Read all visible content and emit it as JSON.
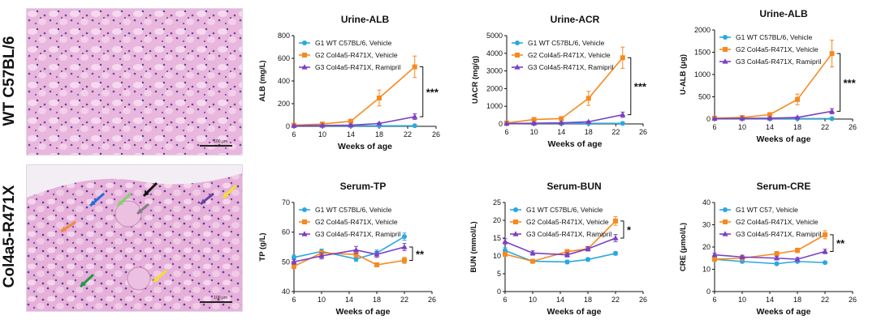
{
  "row_labels": [
    "WT C57BL/6",
    "Col4a5-R471X"
  ],
  "micrographs": [
    {
      "scale_label": "100 μm",
      "arrows": []
    },
    {
      "scale_label": "100 μm",
      "arrows": [
        "#1e6fd9",
        "#f08a3c",
        "#7fd36b",
        "#111111",
        "#808080",
        "#6a3fa0",
        "#f2e02a",
        "#f2e02a",
        "#1f9a4a"
      ]
    }
  ],
  "colors": {
    "G1": "#2aa8e0",
    "G2": "#f58a1f",
    "G3": "#7b3fc4"
  },
  "chart_data": [
    {
      "type": "line",
      "title": "Urine-ALB",
      "xlabel": "Weeks of age",
      "ylabel": "ALB (mg/L)",
      "xlim": [
        6,
        26
      ],
      "xticks": [
        6,
        10,
        14,
        18,
        22,
        26
      ],
      "ylim": [
        0,
        800
      ],
      "yticks": [
        0,
        200,
        400,
        600,
        800
      ],
      "significance": "***",
      "sig_between": [
        "G2",
        "G3"
      ],
      "series": [
        {
          "key": "G1",
          "name": "G1 WT C57BL/6, Vehicle",
          "marker": "circle",
          "x": [
            6,
            10,
            14,
            18,
            23
          ],
          "y": [
            5,
            5,
            5,
            5,
            5
          ],
          "err": [
            2,
            2,
            2,
            2,
            2
          ]
        },
        {
          "key": "G2",
          "name": "G2 Col4a5-R471X, Vehicle",
          "marker": "square",
          "x": [
            6,
            10,
            14,
            18,
            23
          ],
          "y": [
            10,
            20,
            45,
            250,
            525
          ],
          "err": [
            5,
            8,
            12,
            70,
            95
          ]
        },
        {
          "key": "G3",
          "name": "G3 Col4a5-R471X, Ramipril",
          "marker": "triangle",
          "x": [
            6,
            10,
            14,
            18,
            23
          ],
          "y": [
            5,
            8,
            10,
            25,
            85
          ],
          "err": [
            3,
            4,
            5,
            8,
            25
          ]
        }
      ]
    },
    {
      "type": "line",
      "title": "Urine-ACR",
      "xlabel": "Weeks of age",
      "ylabel": "UACR (mg/g)",
      "xlim": [
        6,
        26
      ],
      "xticks": [
        6,
        10,
        14,
        18,
        22,
        26
      ],
      "ylim": [
        0,
        5000
      ],
      "yticks": [
        0,
        1000,
        2000,
        3000,
        4000,
        5000
      ],
      "significance": "***",
      "sig_between": [
        "G2",
        "G3"
      ],
      "series": [
        {
          "key": "G1",
          "name": "G1 WT C57BL/6, Vehicle",
          "marker": "circle",
          "x": [
            6,
            10,
            14,
            18,
            23
          ],
          "y": [
            30,
            30,
            30,
            30,
            30
          ],
          "err": [
            10,
            10,
            10,
            10,
            10
          ]
        },
        {
          "key": "G2",
          "name": "G2 Col4a5-R471X, Vehicle",
          "marker": "square",
          "x": [
            6,
            10,
            14,
            18,
            23
          ],
          "y": [
            50,
            250,
            300,
            1450,
            3750
          ],
          "err": [
            20,
            60,
            80,
            400,
            600
          ]
        },
        {
          "key": "G3",
          "name": "G3 Col4a5-R471X, Ramipril",
          "marker": "triangle",
          "x": [
            6,
            10,
            14,
            18,
            23
          ],
          "y": [
            20,
            40,
            60,
            120,
            520
          ],
          "err": [
            10,
            15,
            20,
            40,
            150
          ]
        }
      ]
    },
    {
      "type": "line",
      "title": "Urine-ALB",
      "xlabel": "Weeks of age",
      "ylabel": "U-ALB (μg)",
      "xlim": [
        6,
        26
      ],
      "xticks": [
        6,
        10,
        14,
        18,
        22,
        26
      ],
      "ylim": [
        0,
        2000
      ],
      "yticks": [
        0,
        500,
        1000,
        1500,
        2000
      ],
      "significance": "***",
      "sig_between": [
        "G2",
        "G3"
      ],
      "series": [
        {
          "key": "G1",
          "name": "G1 WT C57BL/6, Vehicle",
          "marker": "circle",
          "x": [
            6,
            10,
            14,
            18,
            23
          ],
          "y": [
            10,
            10,
            10,
            10,
            10
          ],
          "err": [
            4,
            4,
            4,
            4,
            4
          ]
        },
        {
          "key": "G2",
          "name": "G2 Col4a5-R471X, Vehicle",
          "marker": "square",
          "x": [
            6,
            10,
            14,
            18,
            23
          ],
          "y": [
            20,
            35,
            100,
            440,
            1470
          ],
          "err": [
            8,
            12,
            30,
            120,
            300
          ]
        },
        {
          "key": "G3",
          "name": "G3 Col4a5-R471X, Ramipril",
          "marker": "triangle",
          "x": [
            6,
            10,
            14,
            18,
            23
          ],
          "y": [
            10,
            15,
            20,
            35,
            175
          ],
          "err": [
            5,
            6,
            8,
            15,
            60
          ]
        }
      ]
    },
    {
      "type": "line",
      "title": "Serum-TP",
      "xlabel": "Weeks of age",
      "ylabel": "TP (g/L)",
      "xlim": [
        6,
        26
      ],
      "xticks": [
        6,
        10,
        14,
        18,
        22,
        26
      ],
      "ylim": [
        40,
        70
      ],
      "yticks": [
        40,
        50,
        60,
        70
      ],
      "significance": "**",
      "sig_between": [
        "G3",
        "G2"
      ],
      "series": [
        {
          "key": "G1",
          "name": "G1 WT C57BL/6, Vehicle",
          "marker": "circle",
          "x": [
            6,
            10,
            15,
            18,
            22
          ],
          "y": [
            51.5,
            53.5,
            51,
            53,
            58.5
          ],
          "err": [
            0.8,
            0.8,
            0.8,
            1,
            1.2
          ]
        },
        {
          "key": "G2",
          "name": "G2 Col4a5-R471X, Vehicle",
          "marker": "square",
          "x": [
            6,
            10,
            15,
            18,
            22
          ],
          "y": [
            48.5,
            53,
            52.5,
            49,
            50.5
          ],
          "err": [
            0.8,
            0.8,
            1,
            0.7,
            1
          ]
        },
        {
          "key": "G3",
          "name": "G3 Col4a5-R471X, Ramipril",
          "marker": "triangle",
          "x": [
            6,
            10,
            15,
            18,
            22
          ],
          "y": [
            50,
            52,
            54,
            52.5,
            55
          ],
          "err": [
            0.8,
            1,
            1.2,
            1,
            1.2
          ]
        }
      ]
    },
    {
      "type": "line",
      "title": "Serum-BUN",
      "xlabel": "Weeks of age",
      "ylabel": "BUN (mmol/L)",
      "xlim": [
        6,
        26
      ],
      "xticks": [
        6,
        10,
        14,
        18,
        22,
        26
      ],
      "ylim": [
        0,
        25
      ],
      "yticks": [
        0,
        5,
        10,
        15,
        20,
        25
      ],
      "significance": "*",
      "sig_between": [
        "G2",
        "G3"
      ],
      "series": [
        {
          "key": "G1",
          "name": "G1 WT C57BL/6, Vehicle",
          "marker": "circle",
          "x": [
            6,
            10,
            15,
            18,
            22
          ],
          "y": [
            11.5,
            8.5,
            8.3,
            9,
            10.7
          ],
          "err": [
            0.8,
            0.5,
            0.5,
            0.5,
            0.5
          ]
        },
        {
          "key": "G2",
          "name": "G2 Col4a5-R471X, Vehicle",
          "marker": "square",
          "x": [
            6,
            10,
            15,
            18,
            22
          ],
          "y": [
            10.5,
            8.5,
            11.2,
            12,
            19.8
          ],
          "err": [
            0.6,
            0.5,
            0.6,
            0.6,
            1.2
          ]
        },
        {
          "key": "G3",
          "name": "G3 Col4a5-R471X, Ramipril",
          "marker": "triangle",
          "x": [
            6,
            10,
            15,
            18,
            22
          ],
          "y": [
            14,
            10.8,
            10.3,
            12,
            15
          ],
          "err": [
            0.8,
            0.6,
            0.6,
            0.6,
            1
          ]
        }
      ]
    },
    {
      "type": "line",
      "title": "Serum-CRE",
      "xlabel": "Weeks of age",
      "ylabel": "CRE (μmol/L)",
      "xlim": [
        6,
        26
      ],
      "xticks": [
        6,
        10,
        14,
        18,
        22,
        26
      ],
      "ylim": [
        0,
        40
      ],
      "yticks": [
        0,
        10,
        20,
        30,
        40
      ],
      "significance": "**",
      "sig_between": [
        "G2",
        "G3"
      ],
      "series": [
        {
          "key": "G1",
          "name": "G1 WT C57, Vehicle",
          "marker": "circle",
          "x": [
            6,
            10,
            15,
            18,
            22
          ],
          "y": [
            14.5,
            13.5,
            12.5,
            13.5,
            13
          ],
          "err": [
            0.8,
            0.6,
            0.6,
            0.6,
            0.5
          ]
        },
        {
          "key": "G2",
          "name": "G2 Col4a5-R471X, Vehicle",
          "marker": "square",
          "x": [
            6,
            10,
            15,
            18,
            22
          ],
          "y": [
            14.5,
            15,
            17,
            18.5,
            25.5
          ],
          "err": [
            0.8,
            0.8,
            1,
            1,
            1.8
          ]
        },
        {
          "key": "G3",
          "name": "G3 Col4a5-R471X, Ramipril",
          "marker": "triangle",
          "x": [
            6,
            10,
            15,
            18,
            22
          ],
          "y": [
            16.5,
            15.5,
            15,
            14.5,
            18
          ],
          "err": [
            0.8,
            0.8,
            0.8,
            0.8,
            1
          ]
        }
      ]
    }
  ]
}
